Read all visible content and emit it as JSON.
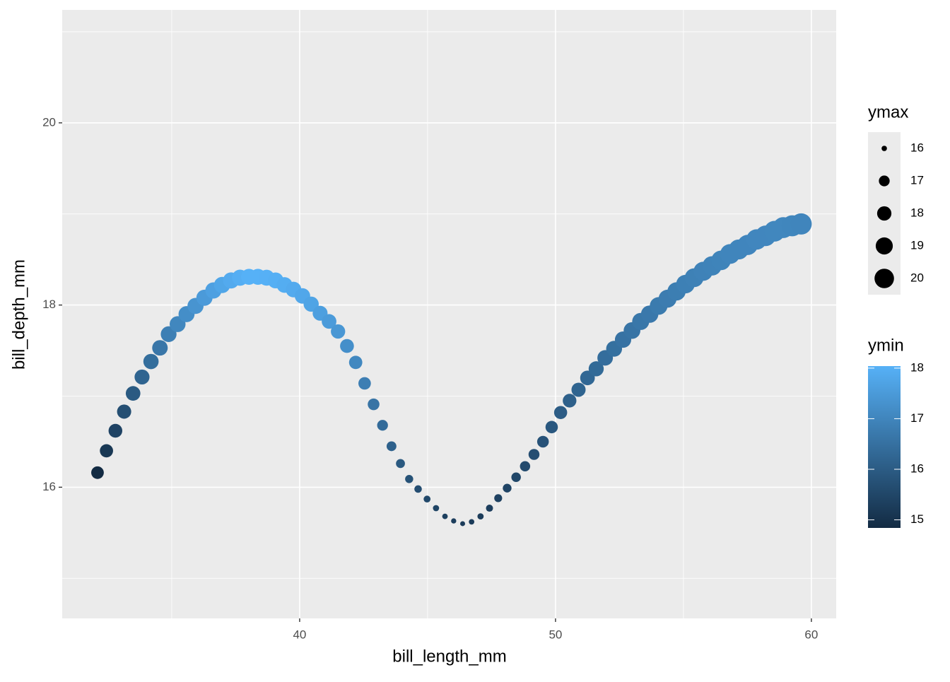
{
  "chart_data": {
    "type": "scatter",
    "x_label": "bill_length_mm",
    "y_label": "bill_depth_mm",
    "xlim": [
      30.72,
      60.97
    ],
    "ylim": [
      14.56,
      21.24
    ],
    "xticks": [
      40,
      50,
      60
    ],
    "yticks": [
      16,
      18,
      20
    ],
    "x_minor_ticks": [
      35,
      45,
      55
    ],
    "y_minor_ticks": [
      15,
      17,
      19,
      21
    ],
    "grid": true,
    "x": [
      32.1,
      32.45,
      32.8,
      33.14,
      33.49,
      33.84,
      34.19,
      34.54,
      34.88,
      35.23,
      35.58,
      35.93,
      36.28,
      36.63,
      36.97,
      37.32,
      37.67,
      38.02,
      38.37,
      38.71,
      39.06,
      39.41,
      39.76,
      40.11,
      40.45,
      40.8,
      41.15,
      41.5,
      41.85,
      42.19,
      42.54,
      42.89,
      43.24,
      43.59,
      43.94,
      44.28,
      44.63,
      44.98,
      45.33,
      45.68,
      46.02,
      46.37,
      46.72,
      47.07,
      47.42,
      47.76,
      48.11,
      48.46,
      48.81,
      49.16,
      49.51,
      49.85,
      50.2,
      50.55,
      50.9,
      51.25,
      51.59,
      51.94,
      52.29,
      52.64,
      52.99,
      53.33,
      53.68,
      54.03,
      54.38,
      54.73,
      55.08,
      55.42,
      55.77,
      56.12,
      56.47,
      56.82,
      57.16,
      57.51,
      57.86,
      58.21,
      58.56,
      58.9,
      59.25,
      59.6
    ],
    "values": [
      16.16,
      16.4,
      16.62,
      16.83,
      17.03,
      17.21,
      17.38,
      17.53,
      17.68,
      17.79,
      17.9,
      17.99,
      18.08,
      18.16,
      18.22,
      18.27,
      18.3,
      18.31,
      18.31,
      18.3,
      18.27,
      18.22,
      18.17,
      18.1,
      18.01,
      17.91,
      17.82,
      17.71,
      17.55,
      17.37,
      17.14,
      16.91,
      16.68,
      16.45,
      16.26,
      16.09,
      15.98,
      15.87,
      15.77,
      15.68,
      15.63,
      15.6,
      15.62,
      15.68,
      15.77,
      15.88,
      15.99,
      16.11,
      16.23,
      16.36,
      16.5,
      16.66,
      16.82,
      16.95,
      17.07,
      17.2,
      17.3,
      17.42,
      17.52,
      17.62,
      17.72,
      17.82,
      17.9,
      17.99,
      18.07,
      18.15,
      18.23,
      18.3,
      18.37,
      18.43,
      18.49,
      18.56,
      18.61,
      18.66,
      18.72,
      18.76,
      18.81,
      18.85,
      18.87,
      18.89
    ],
    "size_values": [
      17.48,
      17.66,
      17.82,
      17.96,
      18.1,
      18.22,
      18.33,
      18.42,
      18.51,
      18.55,
      18.6,
      18.63,
      18.66,
      18.68,
      18.67,
      18.66,
      18.63,
      18.58,
      18.58,
      18.58,
      18.55,
      18.5,
      18.46,
      18.39,
      18.3,
      18.21,
      18.12,
      18.01,
      17.86,
      17.68,
      17.45,
      17.23,
      17.0,
      16.77,
      16.59,
      16.42,
      16.31,
      16.21,
      16.11,
      16.02,
      15.98,
      15.95,
      16.01,
      16.11,
      16.24,
      16.39,
      16.54,
      16.7,
      16.87,
      17.04,
      17.22,
      17.42,
      17.62,
      17.79,
      17.95,
      18.12,
      18.26,
      18.42,
      18.56,
      18.7,
      18.85,
      18.99,
      19.11,
      19.24,
      19.36,
      19.48,
      19.6,
      19.71,
      19.82,
      19.92,
      20.02,
      20.13,
      20.23,
      20.32,
      20.42,
      20.5,
      20.59,
      20.67,
      20.73,
      20.79
    ],
    "color_values": [
      14.84,
      15.14,
      15.42,
      15.7,
      15.96,
      16.2,
      16.43,
      16.64,
      16.85,
      17.03,
      17.2,
      17.35,
      17.5,
      17.64,
      17.77,
      17.88,
      17.97,
      18.04,
      18.04,
      18.02,
      17.99,
      17.94,
      17.88,
      17.81,
      17.72,
      17.61,
      17.52,
      17.41,
      17.24,
      17.06,
      16.83,
      16.59,
      16.36,
      16.13,
      15.93,
      15.76,
      15.65,
      15.53,
      15.43,
      15.34,
      15.28,
      15.25,
      15.23,
      15.25,
      15.3,
      15.37,
      15.44,
      15.52,
      15.59,
      15.68,
      15.78,
      15.9,
      16.02,
      16.11,
      16.19,
      16.28,
      16.34,
      16.42,
      16.48,
      16.54,
      16.59,
      16.65,
      16.69,
      16.74,
      16.78,
      16.82,
      16.86,
      16.89,
      16.92,
      16.94,
      16.96,
      16.99,
      16.99,
      17.0,
      17.02,
      17.02,
      17.03,
      17.03,
      17.01,
      16.99
    ],
    "size_legend": {
      "title": "ymax",
      "breaks": [
        16,
        17,
        18,
        19,
        20
      ],
      "color": "#000000"
    },
    "color_legend": {
      "title": "ymin",
      "breaks": [
        15,
        16,
        17,
        18
      ],
      "colors": [
        "#132B43",
        "#56B1F7"
      ]
    }
  }
}
